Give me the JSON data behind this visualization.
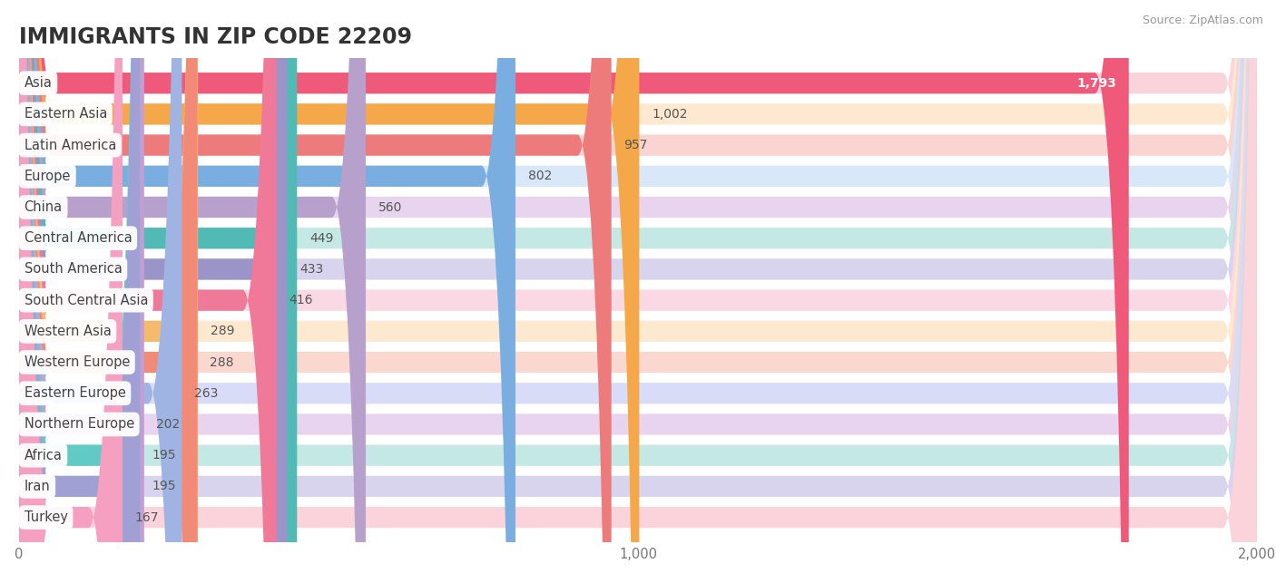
{
  "title": "Immigrants in Zip Code 22209",
  "title_display": "IMMIGRANTS IN ZIP CODE 22209",
  "source_text": "Source: ZipAtlas.com",
  "categories": [
    "Asia",
    "Eastern Asia",
    "Latin America",
    "Europe",
    "China",
    "Central America",
    "South America",
    "South Central Asia",
    "Western Asia",
    "Western Europe",
    "Eastern Europe",
    "Northern Europe",
    "Africa",
    "Iran",
    "Turkey"
  ],
  "values": [
    1793,
    1002,
    957,
    802,
    560,
    449,
    433,
    416,
    289,
    288,
    263,
    202,
    195,
    195,
    167
  ],
  "bar_colors": [
    "#F05A7A",
    "#F5A84A",
    "#EE7B7B",
    "#7AAEE0",
    "#B8A0CC",
    "#52BAB4",
    "#9A94C8",
    "#F07898",
    "#F5BB6A",
    "#F28A78",
    "#A0B4E4",
    "#C0A0D4",
    "#62CAC4",
    "#A0A0D4",
    "#F5A0C0"
  ],
  "bg_colors": [
    "#FAD4DA",
    "#FDE8D0",
    "#FAD4D0",
    "#D8E8F8",
    "#E8D4EE",
    "#C4E8E4",
    "#D8D4EE",
    "#FAD8E4",
    "#FDE8D0",
    "#FAD8D0",
    "#D8DCF8",
    "#E8D4EE",
    "#C4E8E4",
    "#D8D4EE",
    "#FAD4DA"
  ],
  "xlim": [
    0,
    2000
  ],
  "xticks": [
    0,
    1000,
    2000
  ],
  "background_color": "#FFFFFF",
  "plot_bg_color": "#FFFFFF",
  "title_fontsize": 17,
  "bar_height": 0.68,
  "value_fontsize": 10,
  "label_fontsize": 10.5
}
